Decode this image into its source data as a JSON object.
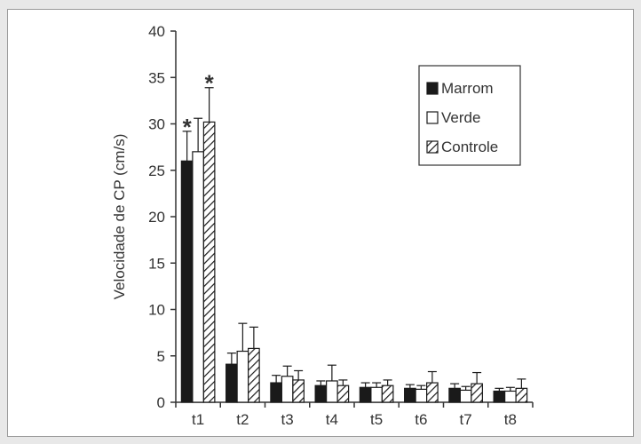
{
  "chart_data": {
    "type": "bar",
    "title": "",
    "xlabel": "",
    "ylabel": "Velocidade de CP (cm/s)",
    "ylim": [
      0,
      40
    ],
    "yticks": [
      0,
      5,
      10,
      15,
      20,
      25,
      30,
      35,
      40
    ],
    "categories": [
      "t1",
      "t2",
      "t3",
      "t4",
      "t5",
      "t6",
      "t7",
      "t8"
    ],
    "series": [
      {
        "name": "Marrom",
        "fill": "solid",
        "color": "#1a1a1a",
        "values": [
          26.0,
          4.1,
          2.1,
          1.8,
          1.6,
          1.5,
          1.5,
          1.2
        ],
        "errors": [
          3.2,
          1.2,
          0.8,
          0.5,
          0.5,
          0.4,
          0.5,
          0.3
        ]
      },
      {
        "name": "Verde",
        "fill": "open",
        "color": "#ffffff",
        "values": [
          27.0,
          5.5,
          2.8,
          2.3,
          1.6,
          1.4,
          1.3,
          1.2
        ],
        "errors": [
          3.6,
          3.0,
          1.1,
          1.7,
          0.5,
          0.4,
          0.4,
          0.4
        ]
      },
      {
        "name": "Controle",
        "fill": "hatched",
        "color": "#ffffff",
        "values": [
          30.2,
          5.8,
          2.4,
          1.8,
          1.8,
          2.1,
          2.0,
          1.5
        ],
        "errors": [
          3.7,
          2.3,
          1.0,
          0.6,
          0.6,
          1.2,
          1.2,
          1.0
        ]
      }
    ],
    "annotations": [
      {
        "text": "*",
        "category": "t1",
        "series": "Marrom"
      },
      {
        "text": "*",
        "category": "t1",
        "series": "Controle"
      }
    ],
    "legend_position": "top-right",
    "grid": false
  }
}
